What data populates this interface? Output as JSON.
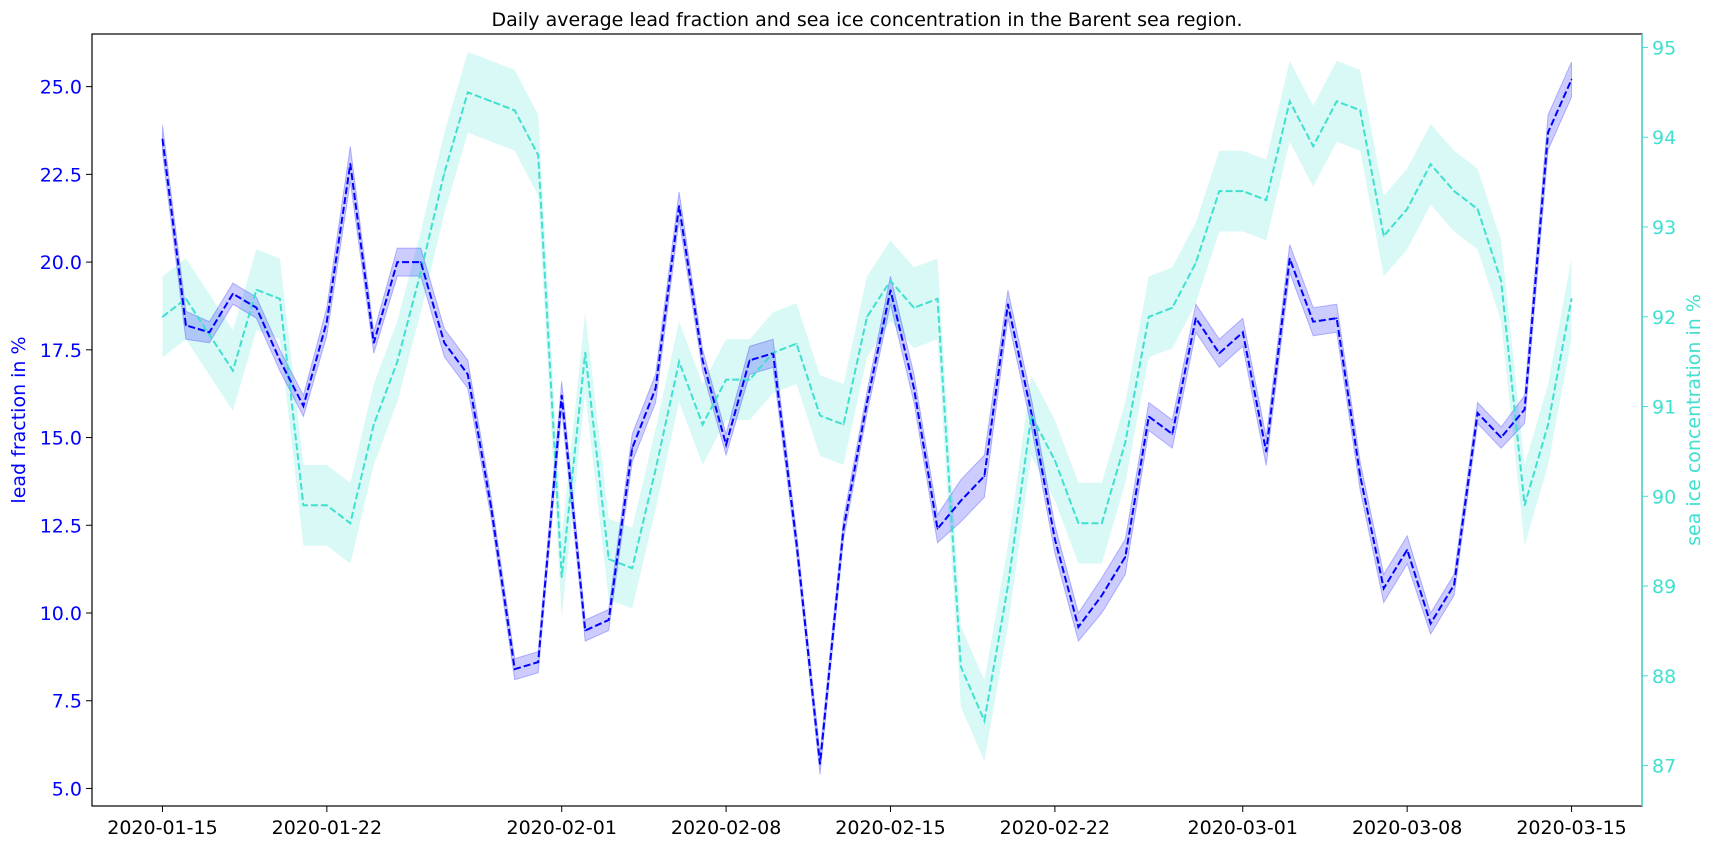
{
  "colors": {
    "lead": "#0000ff",
    "lead_band": "#0000ff",
    "ice": "#40e0d0",
    "ice_band": "#40e0d0",
    "axis": "#000000"
  },
  "chart_data": {
    "type": "line",
    "title": "Daily average lead fraction and sea ice concentration in the Barent sea region.",
    "xlabel": "",
    "x": [
      "2020-01-15",
      "2020-01-16",
      "2020-01-17",
      "2020-01-18",
      "2020-01-19",
      "2020-01-20",
      "2020-01-21",
      "2020-01-22",
      "2020-01-23",
      "2020-01-24",
      "2020-01-25",
      "2020-01-26",
      "2020-01-27",
      "2020-01-28",
      "2020-01-29",
      "2020-01-30",
      "2020-01-31",
      "2020-02-01",
      "2020-02-02",
      "2020-02-03",
      "2020-02-04",
      "2020-02-05",
      "2020-02-06",
      "2020-02-07",
      "2020-02-08",
      "2020-02-09",
      "2020-02-10",
      "2020-02-11",
      "2020-02-12",
      "2020-02-13",
      "2020-02-14",
      "2020-02-15",
      "2020-02-16",
      "2020-02-17",
      "2020-02-18",
      "2020-02-19",
      "2020-02-20",
      "2020-02-21",
      "2020-02-22",
      "2020-02-23",
      "2020-02-24",
      "2020-02-25",
      "2020-02-26",
      "2020-02-27",
      "2020-02-28",
      "2020-02-29",
      "2020-03-01",
      "2020-03-02",
      "2020-03-03",
      "2020-03-04",
      "2020-03-05",
      "2020-03-06",
      "2020-03-07",
      "2020-03-08",
      "2020-03-09",
      "2020-03-10",
      "2020-03-11",
      "2020-03-12",
      "2020-03-13",
      "2020-03-14",
      "2020-03-15"
    ],
    "xticks": [
      "2020-01-15",
      "2020-01-22",
      "2020-02-01",
      "2020-02-08",
      "2020-02-15",
      "2020-02-22",
      "2020-03-01",
      "2020-03-08",
      "2020-03-15"
    ],
    "xlim": [
      "2020-01-12",
      "2020-03-18"
    ],
    "series": [
      {
        "axis": "left",
        "style": "dashed",
        "values": [
          23.5,
          18.2,
          18.0,
          19.1,
          18.7,
          17.2,
          15.9,
          18.3,
          22.8,
          17.7,
          20.0,
          20.0,
          17.7,
          16.8,
          13.0,
          8.4,
          8.6,
          16.2,
          9.5,
          9.8,
          14.7,
          16.4,
          21.6,
          17.2,
          14.8,
          17.2,
          17.4,
          12.0,
          5.7,
          12.4,
          16.0,
          19.2,
          16.4,
          12.4,
          13.2,
          13.9,
          18.8,
          15.7,
          12.1,
          9.6,
          10.5,
          11.6,
          15.6,
          15.1,
          18.4,
          17.4,
          18.0,
          14.6,
          20.1,
          18.3,
          18.4,
          13.9,
          10.7,
          11.8,
          9.7,
          10.8,
          15.7,
          15.0,
          15.8,
          23.7,
          25.2
        ],
        "band": [
          0.4,
          0.4,
          0.3,
          0.3,
          0.3,
          0.3,
          0.3,
          0.4,
          0.5,
          0.3,
          0.4,
          0.4,
          0.4,
          0.4,
          0.3,
          0.3,
          0.3,
          0.4,
          0.3,
          0.3,
          0.4,
          0.4,
          0.4,
          0.3,
          0.3,
          0.4,
          0.4,
          0.3,
          0.3,
          0.3,
          0.3,
          0.4,
          0.4,
          0.4,
          0.6,
          0.6,
          0.4,
          0.4,
          0.4,
          0.4,
          0.5,
          0.5,
          0.4,
          0.4,
          0.4,
          0.4,
          0.4,
          0.4,
          0.4,
          0.4,
          0.4,
          0.4,
          0.4,
          0.4,
          0.3,
          0.3,
          0.3,
          0.3,
          0.4,
          0.5,
          0.5
        ]
      },
      {
        "axis": "right",
        "style": "dashed",
        "values": [
          92.0,
          92.2,
          91.8,
          91.4,
          92.3,
          92.2,
          89.9,
          89.9,
          89.7,
          90.8,
          91.5,
          92.5,
          93.6,
          94.5,
          94.4,
          94.3,
          93.8,
          89.1,
          91.6,
          89.3,
          89.2,
          90.3,
          91.5,
          90.8,
          91.3,
          91.3,
          91.6,
          91.7,
          90.9,
          90.8,
          92.0,
          92.4,
          92.1,
          92.2,
          88.1,
          87.5,
          89.0,
          90.9,
          90.4,
          89.7,
          89.7,
          90.6,
          92.0,
          92.1,
          92.6,
          93.4,
          93.4,
          93.3,
          94.4,
          93.9,
          94.4,
          94.3,
          92.9,
          93.2,
          93.7,
          93.4,
          93.2,
          92.4,
          89.9,
          90.8,
          92.2
        ]
      }
    ],
    "y_left": {
      "label": "lead fraction in %",
      "lim": [
        4.5,
        26.5
      ],
      "ticks": [
        5.0,
        7.5,
        10.0,
        12.5,
        15.0,
        17.5,
        20.0,
        22.5,
        25.0
      ],
      "tick_labels": [
        "5.0",
        "7.5",
        "10.0",
        "12.5",
        "15.0",
        "17.5",
        "20.0",
        "22.5",
        "25.0"
      ]
    },
    "y_right": {
      "label": "sea ice concentration in %",
      "lim": [
        86.55,
        95.15
      ],
      "ticks": [
        87,
        88,
        89,
        90,
        91,
        92,
        93,
        94,
        95
      ],
      "tick_labels": [
        "87",
        "88",
        "89",
        "90",
        "91",
        "92",
        "93",
        "94",
        "95"
      ]
    },
    "ice_band_fixed": 0.45,
    "grid": false,
    "legend": "none"
  }
}
